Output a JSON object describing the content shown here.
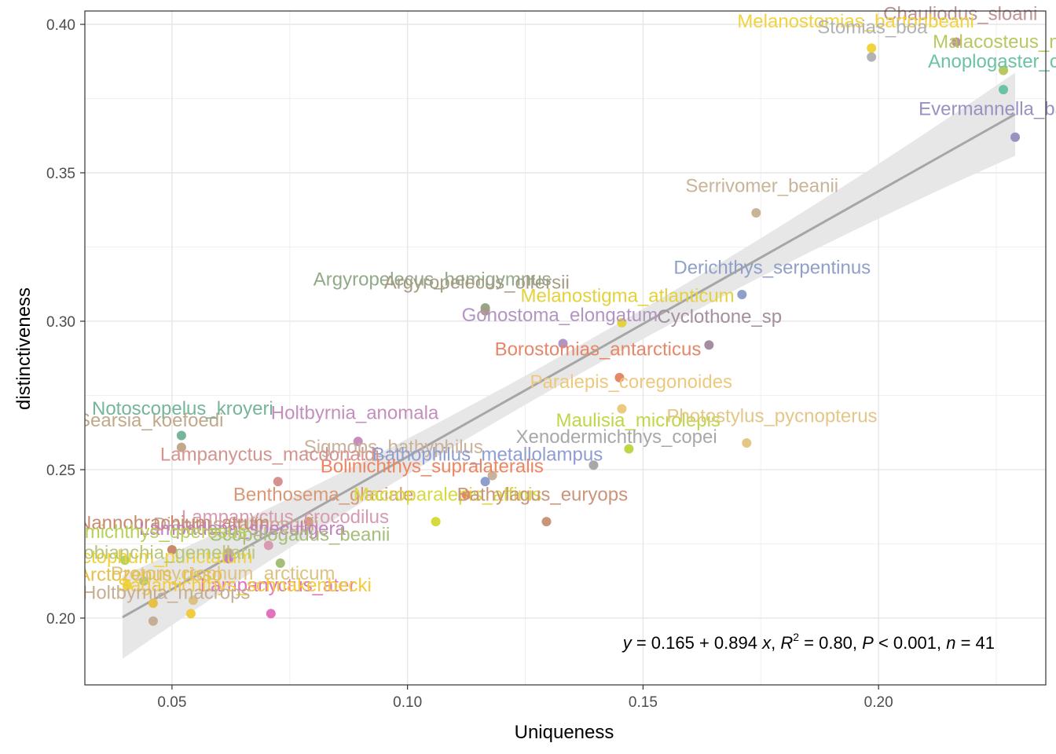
{
  "chart_data": {
    "type": "scatter",
    "xlabel": "Uniqueness",
    "ylabel": "distinctiveness",
    "xlim": [
      0.0315,
      0.2355
    ],
    "ylim": [
      0.1775,
      0.4045
    ],
    "x_ticks": [
      0.05,
      0.1,
      0.15,
      0.2
    ],
    "x_tick_labels": [
      "0.05",
      "0.10",
      "0.15",
      "0.20"
    ],
    "y_ticks": [
      0.2,
      0.25,
      0.3,
      0.35,
      0.4
    ],
    "y_tick_labels": [
      "0.20",
      "0.25",
      "0.30",
      "0.35",
      "0.40"
    ],
    "grid": true,
    "regression": {
      "intercept": 0.165,
      "slope": 0.894,
      "x_range": [
        0.0395,
        0.229
      ],
      "equation_parts": {
        "y": "y",
        "eq_mid": " = 0.165 + 0.894 ",
        "x": "x",
        "r2_pre": ", ",
        "r": "R",
        "r2_exp": "2",
        "r2_val": " = 0.80, ",
        "p": "P",
        "p_val": " < 0.001, ",
        "n": "n",
        "n_val": " = 41"
      }
    },
    "points": [
      {
        "label": "Chauliodus_sloani",
        "x": 0.2165,
        "y": 0.394,
        "color": "#bf9294"
      },
      {
        "label": "Melanostomias_bartonbeani",
        "x": 0.1985,
        "y": 0.392,
        "color": "#f2d33d"
      },
      {
        "label": "Stomias_boa",
        "x": 0.1985,
        "y": 0.389,
        "color": "#b3b3b3"
      },
      {
        "label": "Malacosteus_niger",
        "x": 0.2265,
        "y": 0.3845,
        "color": "#b6c961"
      },
      {
        "label": "Anoplogaster_cornuta",
        "x": 0.2265,
        "y": 0.378,
        "color": "#6cc3a1"
      },
      {
        "label": "Evermannella_balbo",
        "x": 0.229,
        "y": 0.362,
        "color": "#9b90c2"
      },
      {
        "label": "Serrivomer_beanii",
        "x": 0.174,
        "y": 0.3365,
        "color": "#c9b497"
      },
      {
        "label": "Derichthys_serpentinus",
        "x": 0.171,
        "y": 0.309,
        "color": "#8f9fc8"
      },
      {
        "label": "Argyropelecus_hemigymnus",
        "x": 0.1165,
        "y": 0.3045,
        "color": "#92a989"
      },
      {
        "label": "Argyropelecus_olfersii",
        "x": 0.1165,
        "y": 0.3035,
        "color": "#a69c84"
      },
      {
        "label": "Melanostigma_atlanticum",
        "x": 0.1455,
        "y": 0.2995,
        "color": "#e3d23c"
      },
      {
        "label": "Gonostoma_elongatum",
        "x": 0.133,
        "y": 0.2925,
        "color": "#b295c3"
      },
      {
        "label": "Cyclothone_sp",
        "x": 0.164,
        "y": 0.292,
        "color": "#a48f9e"
      },
      {
        "label": "Borostomias_antarcticus",
        "x": 0.145,
        "y": 0.281,
        "color": "#e58769"
      },
      {
        "label": "Paralepis_coregonoides",
        "x": 0.1455,
        "y": 0.2705,
        "color": "#ecc97d"
      },
      {
        "label": "Maulisia_microlepis",
        "x": 0.147,
        "y": 0.257,
        "color": "#bfd746"
      },
      {
        "label": "Photostylus_pycnopterus",
        "x": 0.172,
        "y": 0.259,
        "color": "#e4c687"
      },
      {
        "label": "Xenodermichthys_copei",
        "x": 0.1395,
        "y": 0.2515,
        "color": "#a8a8a8"
      },
      {
        "label": "Holtbyrnia_anomala",
        "x": 0.0895,
        "y": 0.2595,
        "color": "#c68ebd"
      },
      {
        "label": "Sigmops_bathyphilus",
        "x": 0.118,
        "y": 0.248,
        "color": "#c9b29a"
      },
      {
        "label": "Bathophilus_metallolampus",
        "x": 0.1165,
        "y": 0.246,
        "color": "#8f9dd0"
      },
      {
        "label": "Bolinichthys_supralateralis",
        "x": 0.1125,
        "y": 0.2415,
        "color": "#ec8560"
      },
      {
        "label": "Benthosema_glaciale",
        "x": 0.079,
        "y": 0.2325,
        "color": "#d99873"
      },
      {
        "label": "Macroparalepis_affinis",
        "x": 0.106,
        "y": 0.2325,
        "color": "#d7da3d"
      },
      {
        "label": "Bathylagus_euryops",
        "x": 0.1295,
        "y": 0.2325,
        "color": "#c9957a"
      },
      {
        "label": "Lampanyctus_macdonaldi",
        "x": 0.0725,
        "y": 0.246,
        "color": "#d5938f"
      },
      {
        "label": "Searsia_koefoedi",
        "x": 0.052,
        "y": 0.2575,
        "color": "#c2a88a"
      },
      {
        "label": "Notoscopelus_kroyeri",
        "x": 0.052,
        "y": 0.2615,
        "color": "#76b59a"
      },
      {
        "label": "Lampanyctus_crocodilus",
        "x": 0.0705,
        "y": 0.2245,
        "color": "#d79ab2"
      },
      {
        "label": "Diaphus_rafinesquii",
        "x": 0.062,
        "y": 0.222,
        "color": "#c7a991"
      },
      {
        "label": "Nannobrachium_atrum",
        "x": 0.05,
        "y": 0.223,
        "color": "#c88a6f"
      },
      {
        "label": "Lampadena_speculigera",
        "x": 0.062,
        "y": 0.22,
        "color": "#c57fc0"
      },
      {
        "label": "Scopelogadus_beanii",
        "x": 0.073,
        "y": 0.2185,
        "color": "#a5be7a"
      },
      {
        "label": "Normichthys_operosus",
        "x": 0.04,
        "y": 0.2195,
        "color": "#b6d258"
      },
      {
        "label": "Myctophum_punctatum",
        "x": 0.0405,
        "y": 0.211,
        "color": "#f0d23a"
      },
      {
        "label": "Lobianchia_gemellarii",
        "x": 0.044,
        "y": 0.2125,
        "color": "#b8c67a"
      },
      {
        "label": "Protomyctophum_arcticum",
        "x": 0.0545,
        "y": 0.206,
        "color": "#dcc382"
      },
      {
        "label": "Lampanyctus_ater",
        "x": 0.071,
        "y": 0.2015,
        "color": "#e371bd"
      },
      {
        "label": "Arctozenus_risso",
        "x": 0.046,
        "y": 0.205,
        "color": "#e8c048"
      },
      {
        "label": "Sagamichthys_schnakenbecki",
        "x": 0.054,
        "y": 0.2015,
        "color": "#f2cc3c"
      },
      {
        "label": "Holtbyrnia_macrops",
        "x": 0.046,
        "y": 0.199,
        "color": "#c6ae94"
      }
    ],
    "labels": [
      {
        "text": "Chauliodus_sloani",
        "x": 0.201,
        "y": 0.4015,
        "color": "#bf9294"
      },
      {
        "text": "Melanostomias_bartonbeani",
        "x": 0.17,
        "y": 0.399,
        "color": "#f2d33d"
      },
      {
        "text": "Stomias_boa",
        "x": 0.187,
        "y": 0.397,
        "color": "#b3b3b3"
      },
      {
        "text": "Malacosteus_niger",
        "x": 0.2115,
        "y": 0.392,
        "color": "#b6c961"
      },
      {
        "text": "Anoplogaster_cornuta",
        "x": 0.2105,
        "y": 0.3855,
        "color": "#6cc3a1"
      },
      {
        "text": "Evermannella_balbo",
        "x": 0.2085,
        "y": 0.3695,
        "color": "#9b90c2"
      },
      {
        "text": "Serrivomer_beanii",
        "x": 0.159,
        "y": 0.3435,
        "color": "#c9b497"
      },
      {
        "text": "Derichthys_serpentinus",
        "x": 0.1565,
        "y": 0.316,
        "color": "#8f9fc8"
      },
      {
        "text": "Argyropelecus_hemigymnus",
        "x": 0.08,
        "y": 0.312,
        "color": "#92a989"
      },
      {
        "text": "Argyropelecus_olfersii",
        "x": 0.095,
        "y": 0.311,
        "color": "#a69c84"
      },
      {
        "text": "Melanostigma_atlanticum",
        "x": 0.124,
        "y": 0.3065,
        "color": "#e3d23c"
      },
      {
        "text": "Gonostoma_elongatum",
        "x": 0.1115,
        "y": 0.3,
        "color": "#b295c3"
      },
      {
        "text": "Cyclothone_sp",
        "x": 0.153,
        "y": 0.2995,
        "color": "#a48f9e"
      },
      {
        "text": "Borostomias_antarcticus",
        "x": 0.1185,
        "y": 0.2885,
        "color": "#e58769"
      },
      {
        "text": "Paralepis_coregonoides",
        "x": 0.126,
        "y": 0.2775,
        "color": "#ecc97d"
      },
      {
        "text": "Maulisia_microlepis",
        "x": 0.1315,
        "y": 0.2645,
        "color": "#bfd746"
      },
      {
        "text": "Photostylus_pycnopterus",
        "x": 0.155,
        "y": 0.266,
        "color": "#e4c687"
      },
      {
        "text": "Xenodermichthys_copei",
        "x": 0.123,
        "y": 0.259,
        "color": "#a8a8a8"
      },
      {
        "text": "Holtbyrnia_anomala",
        "x": 0.071,
        "y": 0.267,
        "color": "#c68ebd"
      },
      {
        "text": "Sigmops_bathyphilus",
        "x": 0.078,
        "y": 0.2555,
        "color": "#c9b29a"
      },
      {
        "text": "Bathophilus_metallolampus",
        "x": 0.0925,
        "y": 0.253,
        "color": "#8f9dd0"
      },
      {
        "text": "Bolinichthys_supralateralis",
        "x": 0.0815,
        "y": 0.249,
        "color": "#ec8560"
      },
      {
        "text": "Benthosema_glaciale",
        "x": 0.063,
        "y": 0.2395,
        "color": "#d99873"
      },
      {
        "text": "Macroparalepis_affinis",
        "x": 0.0885,
        "y": 0.2395,
        "color": "#d7da3d"
      },
      {
        "text": "Bathylagus_euryops",
        "x": 0.1105,
        "y": 0.2395,
        "color": "#c9957a"
      },
      {
        "text": "Lampanyctus_macdonaldi",
        "x": 0.0475,
        "y": 0.253,
        "color": "#d5938f"
      },
      {
        "text": "Searsia_koefoedi",
        "x": 0.03,
        "y": 0.2645,
        "color": "#c2a88a"
      },
      {
        "text": "Notoscopelus_kroyeri",
        "x": 0.033,
        "y": 0.2685,
        "color": "#76b59a"
      },
      {
        "text": "Lampanyctus_crocodilus",
        "x": 0.052,
        "y": 0.232,
        "color": "#d79ab2"
      },
      {
        "text": "Diaphus_rafinesquii",
        "x": 0.046,
        "y": 0.2295,
        "color": "#c7a991"
      },
      {
        "text": "Nannobrachium_atrum",
        "x": 0.03,
        "y": 0.23,
        "color": "#c88a6f"
      },
      {
        "text": "Lampadena_speculigera",
        "x": 0.043,
        "y": 0.228,
        "color": "#c57fc0"
      },
      {
        "text": "Scopelogadus_beanii",
        "x": 0.058,
        "y": 0.226,
        "color": "#a5be7a"
      },
      {
        "text": "Normichthys_operosus",
        "x": 0.025,
        "y": 0.227,
        "color": "#b6d258"
      },
      {
        "text": "Myctophum_punctatum",
        "x": 0.0255,
        "y": 0.2185,
        "color": "#f0d23a"
      },
      {
        "text": "Lobianchia_gemellarii",
        "x": 0.029,
        "y": 0.22,
        "color": "#b8c67a"
      },
      {
        "text": "Protomyctophum_arcticum",
        "x": 0.037,
        "y": 0.213,
        "color": "#dcc382"
      },
      {
        "text": "Lampanyctus_ater",
        "x": 0.056,
        "y": 0.209,
        "color": "#e371bd"
      },
      {
        "text": "Arctozenus_risso",
        "x": 0.03,
        "y": 0.2125,
        "color": "#e8c048"
      },
      {
        "text": "Sagamichthys_schnakenbecki",
        "x": 0.0385,
        "y": 0.209,
        "color": "#f2cc3c"
      },
      {
        "text": "Holtbyrnia_macrops",
        "x": 0.031,
        "y": 0.2065,
        "color": "#c6ae94"
      }
    ]
  }
}
